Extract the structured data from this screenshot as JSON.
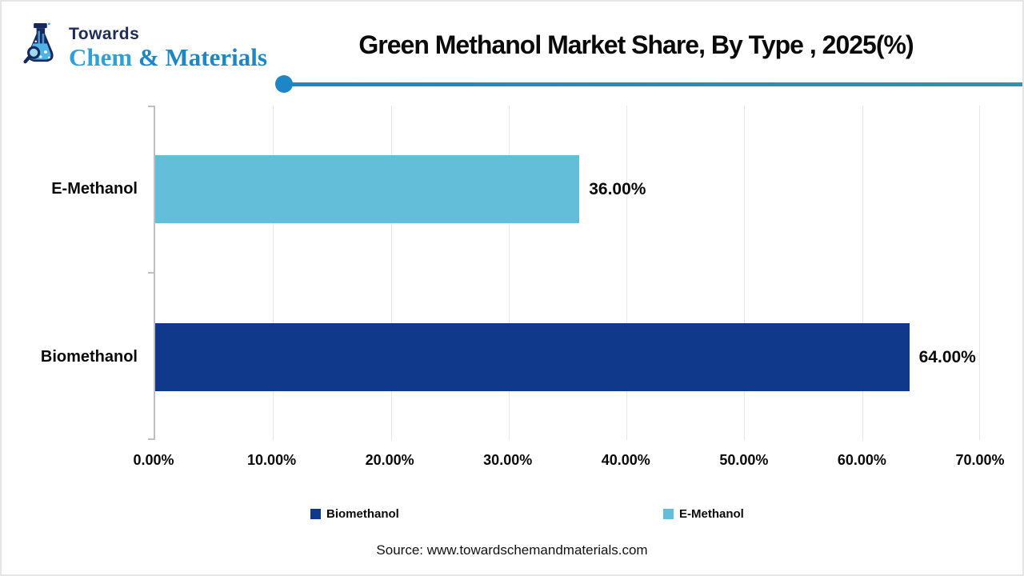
{
  "logo": {
    "towards": "Towards",
    "chem": "Chem",
    "materials": "& Materials"
  },
  "header": {
    "title": "Green Methanol Market Share, By Type , 2025(%)"
  },
  "chart_data": {
    "type": "bar",
    "orientation": "horizontal",
    "title": "Green Methanol Market Share, By Type , 2025(%)",
    "categories": [
      "E-Methanol",
      "Biomethanol"
    ],
    "values": [
      36.0,
      64.0
    ],
    "value_labels": [
      "36.00%",
      "64.00%"
    ],
    "bar_colors": [
      "#63bed9",
      "#10398b"
    ],
    "x_ticks": [
      "0.00%",
      "10.00%",
      "20.00%",
      "30.00%",
      "40.00%",
      "50.00%",
      "60.00%",
      "70.00%"
    ],
    "xlim": [
      0,
      70
    ],
    "grid": true,
    "legend_position": "bottom",
    "legend": [
      {
        "label": "Biomethanol",
        "color": "#10398b"
      },
      {
        "label": "E-Methanol",
        "color": "#63bed9"
      }
    ]
  },
  "colors": {
    "accent_line_left": "#1c86c7",
    "accent_line_right": "#2e93ae",
    "logo_navy": "#1f2b5b",
    "logo_blue": "#2fa0d6",
    "axis_gray": "#bfbfbf",
    "gridline_gray": "#e7e7e7"
  },
  "footer": {
    "source": "Source: www.towardschemandmaterials.com"
  }
}
